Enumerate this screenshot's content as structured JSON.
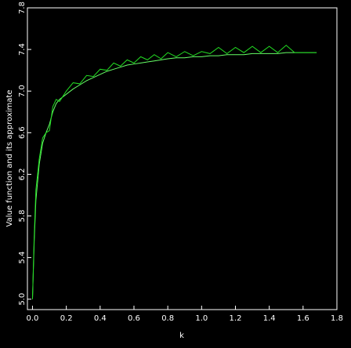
{
  "chart_data": {
    "type": "line",
    "xlabel": "k",
    "ylabel": "Value function and its approximate",
    "x": [
      0,
      0.01,
      0.02,
      0.04,
      0.06,
      0.08,
      0.1,
      0.12,
      0.14,
      0.16,
      0.2,
      0.24,
      0.28,
      0.32,
      0.36,
      0.4,
      0.44,
      0.48,
      0.52,
      0.56,
      0.6,
      0.64,
      0.68,
      0.72,
      0.76,
      0.8,
      0.85,
      0.9,
      0.95,
      1.0,
      1.05,
      1.1,
      1.15,
      1.2,
      1.25,
      1.3,
      1.35,
      1.4,
      1.45,
      1.5,
      1.55,
      1.6,
      1.68
    ],
    "series": [
      {
        "color": "#66ff66",
        "values": [
          5.0,
          5.55,
          5.95,
          6.3,
          6.5,
          6.6,
          6.68,
          6.8,
          6.88,
          6.92,
          6.97,
          7.02,
          7.06,
          7.1,
          7.13,
          7.16,
          7.19,
          7.21,
          7.23,
          7.25,
          7.26,
          7.27,
          7.28,
          7.29,
          7.3,
          7.31,
          7.32,
          7.32,
          7.33,
          7.33,
          7.34,
          7.34,
          7.35,
          7.35,
          7.35,
          7.36,
          7.36,
          7.36,
          7.36,
          7.37,
          7.37,
          7.37,
          7.37
        ]
      },
      {
        "color": "#22dd22",
        "values": [
          5.0,
          5.6,
          6.05,
          6.35,
          6.55,
          6.6,
          6.62,
          6.85,
          6.92,
          6.9,
          7.0,
          7.08,
          7.07,
          7.15,
          7.14,
          7.21,
          7.2,
          7.27,
          7.24,
          7.3,
          7.27,
          7.33,
          7.3,
          7.35,
          7.31,
          7.37,
          7.33,
          7.38,
          7.34,
          7.38,
          7.36,
          7.42,
          7.36,
          7.42,
          7.37,
          7.43,
          7.37,
          7.43,
          7.37,
          7.44,
          7.37,
          7.37,
          7.37
        ]
      }
    ],
    "xlim": [
      -0.03,
      1.8
    ],
    "ylim": [
      4.9,
      7.8
    ],
    "xticks": [
      {
        "value": 0,
        "label": "0.0"
      },
      0.2,
      0.4,
      0.6,
      0.8,
      {
        "value": 1,
        "label": "1.0"
      },
      1.2,
      1.4,
      1.6,
      1.8
    ],
    "yticks": [
      {
        "value": 5,
        "label": "5.0"
      },
      5.4,
      5.8,
      6.2,
      6.6,
      {
        "value": 7,
        "label": "7.0"
      },
      7.4,
      7.8
    ],
    "grid": false
  }
}
